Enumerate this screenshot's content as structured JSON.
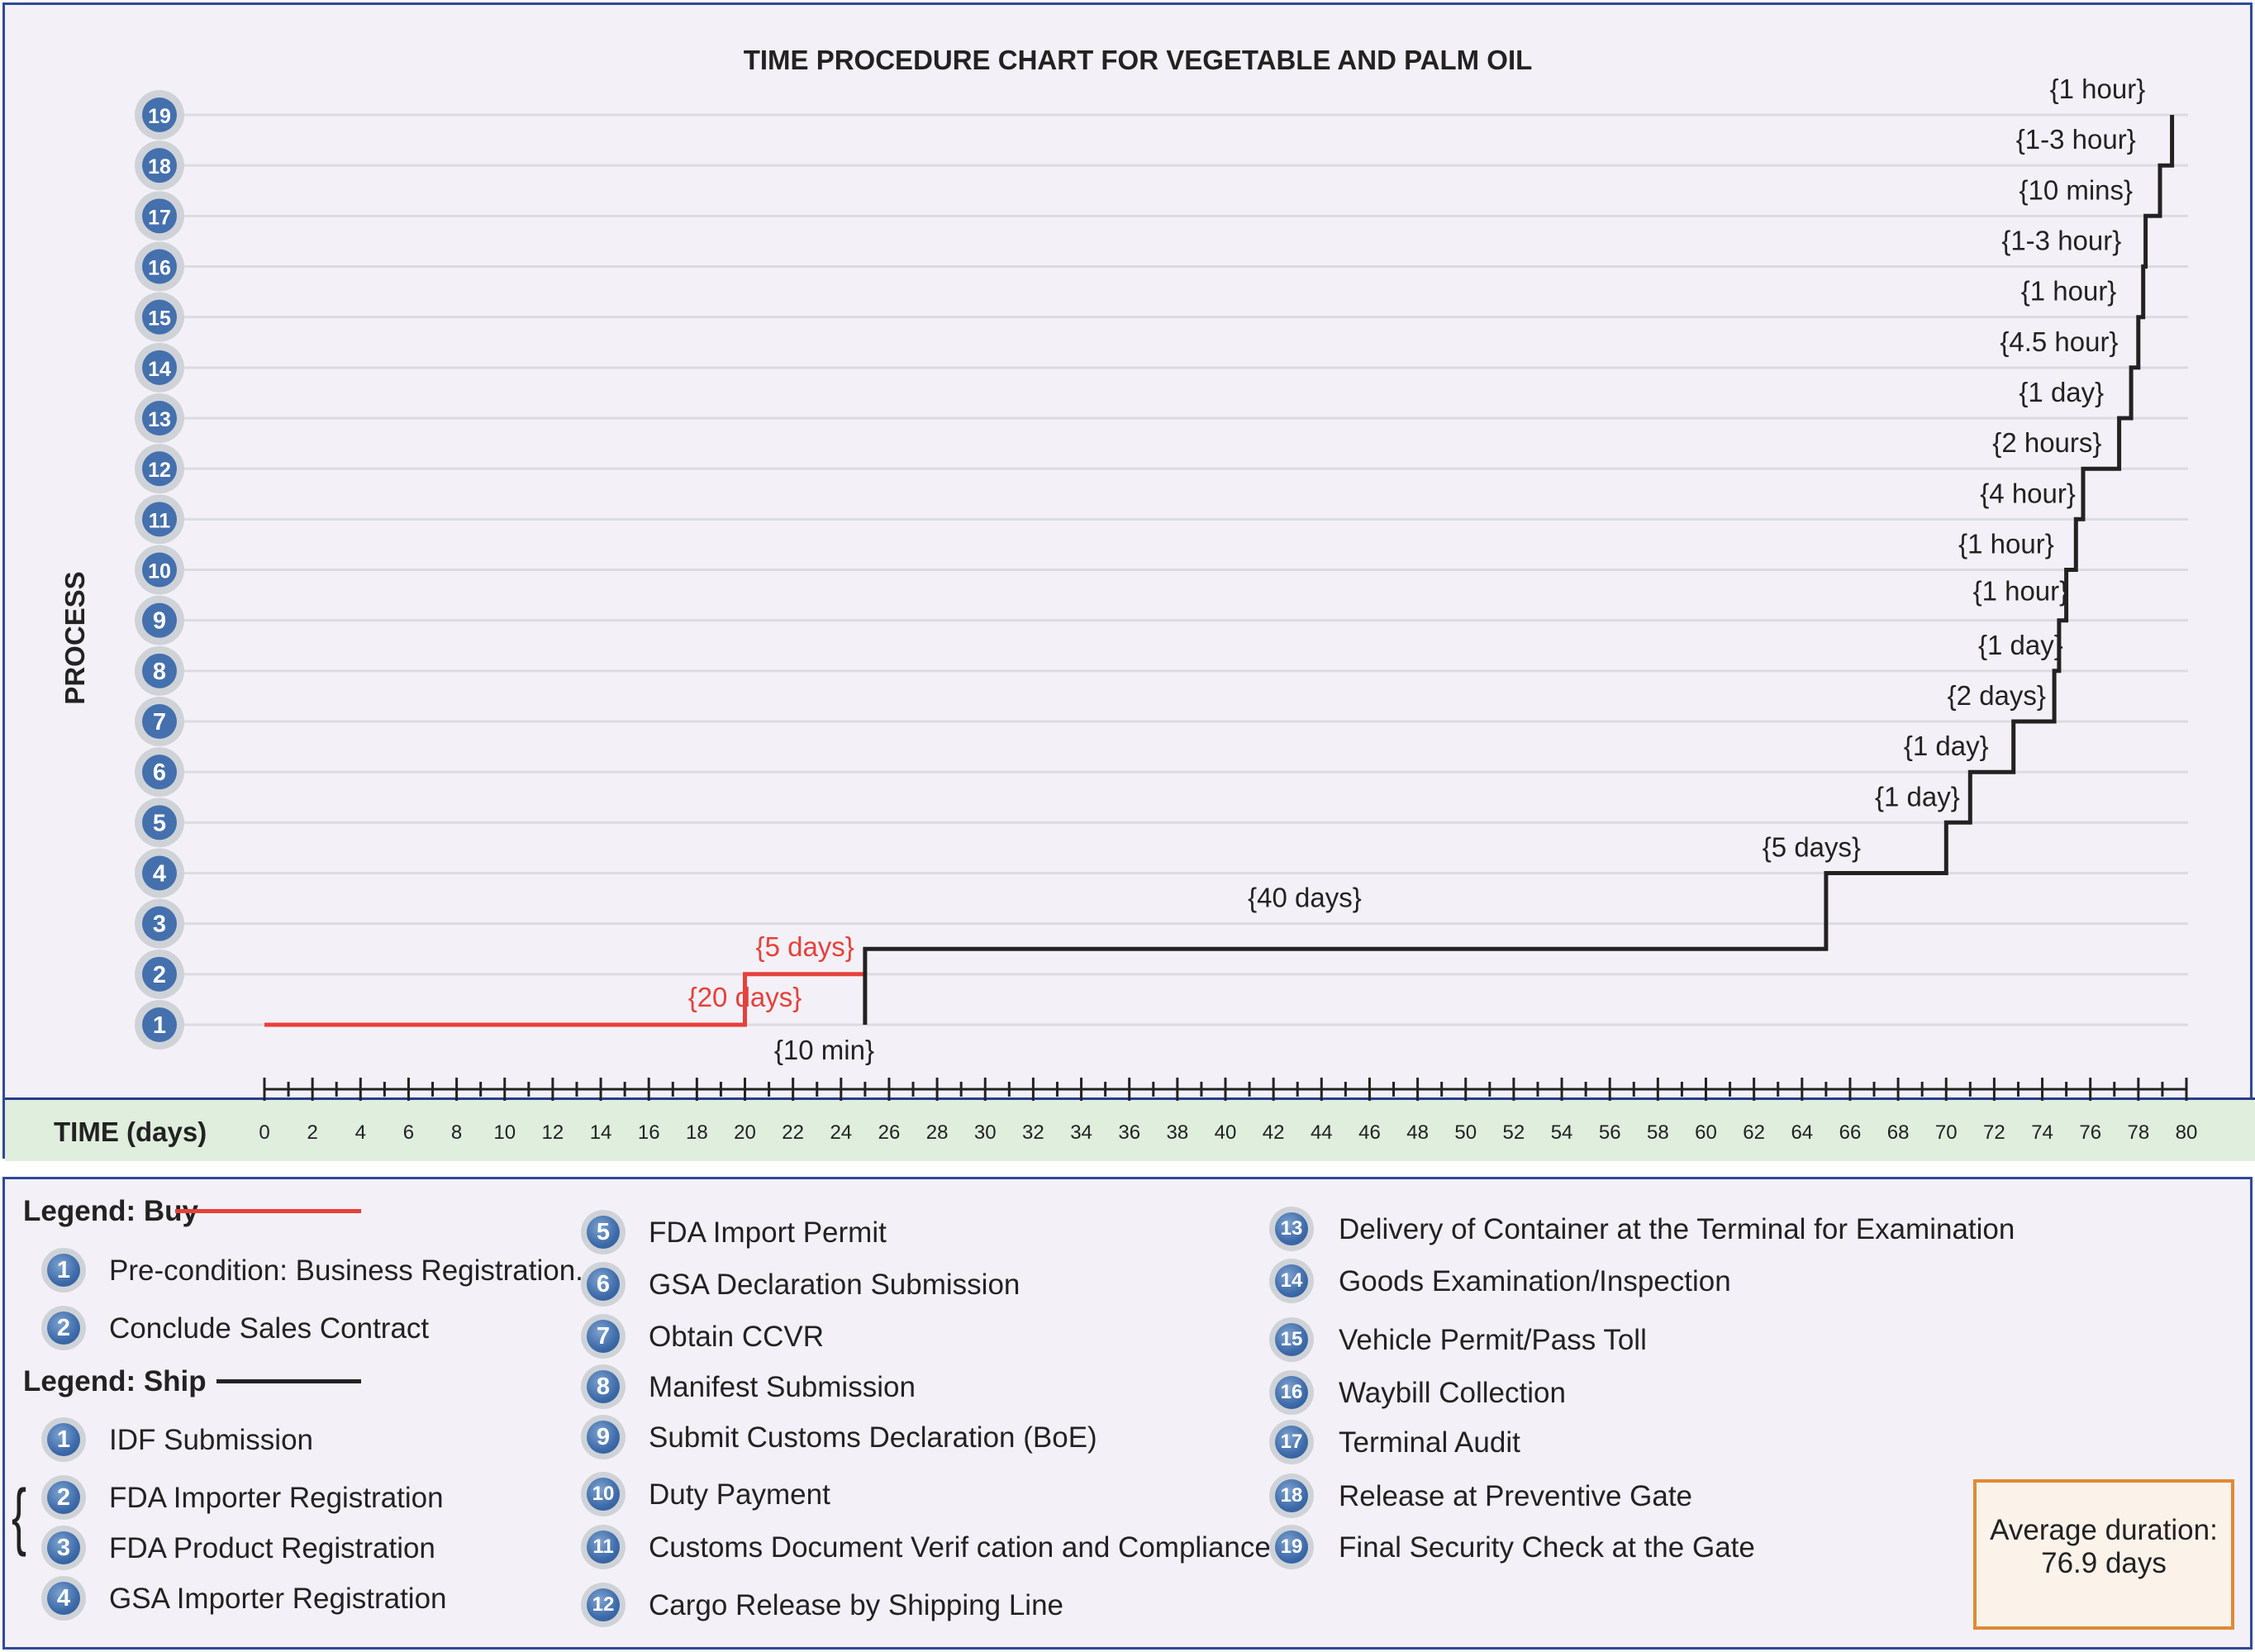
{
  "chart_data": {
    "type": "line",
    "title": "TIME PROCEDURE CHART FOR VEGETABLE AND PALM OIL",
    "xlabel": "TIME (days)",
    "ylabel": "PROCESS",
    "xlim": [
      0,
      80
    ],
    "ylim": [
      1,
      19
    ],
    "x_ticks": [
      "0",
      "2",
      "4",
      "6",
      "8",
      "10",
      "12",
      "14",
      "16",
      "18",
      "20",
      "22",
      "24",
      "26",
      "28",
      "30",
      "32",
      "34",
      "36",
      "38",
      "40",
      "42",
      "44",
      "46",
      "48",
      "50",
      "52",
      "54",
      "56",
      "58",
      "60",
      "62",
      "64",
      "66",
      "68",
      "70",
      "72",
      "74",
      "76",
      "78",
      "80"
    ],
    "y_ticks": [
      "1",
      "2",
      "3",
      "4",
      "5",
      "6",
      "7",
      "8",
      "9",
      "10",
      "11",
      "12",
      "13",
      "14",
      "15",
      "16",
      "17",
      "18",
      "19"
    ],
    "grid": true,
    "series": [
      {
        "name": "Buy",
        "color": "#e8403a",
        "points": [
          [
            0,
            1
          ],
          [
            20,
            1
          ],
          [
            20,
            2
          ],
          [
            25,
            2
          ]
        ]
      },
      {
        "name": "Ship",
        "color": "#222222",
        "points": [
          [
            25,
            1
          ],
          [
            25,
            2.5
          ],
          [
            65,
            2.5
          ],
          [
            65,
            4
          ],
          [
            70,
            4
          ],
          [
            70,
            5
          ],
          [
            71,
            5
          ],
          [
            71,
            6
          ],
          [
            72.8,
            6
          ],
          [
            72.8,
            7
          ],
          [
            74.5,
            7
          ],
          [
            74.5,
            8
          ],
          [
            74.7,
            8
          ],
          [
            74.7,
            9
          ],
          [
            75,
            9
          ],
          [
            75,
            10
          ],
          [
            75.4,
            10
          ],
          [
            75.4,
            11
          ],
          [
            75.7,
            11
          ],
          [
            75.7,
            12
          ],
          [
            77.2,
            12
          ],
          [
            77.2,
            13
          ],
          [
            77.7,
            13
          ],
          [
            77.7,
            14
          ],
          [
            78,
            14
          ],
          [
            78,
            15
          ],
          [
            78.2,
            15
          ],
          [
            78.2,
            16
          ],
          [
            78.3,
            16
          ],
          [
            78.3,
            17
          ],
          [
            78.9,
            17
          ],
          [
            78.9,
            18
          ],
          [
            79.4,
            18
          ],
          [
            79.4,
            19
          ]
        ]
      }
    ],
    "annotations": [
      {
        "text": "{20 days}",
        "x": 20,
        "y": 1,
        "color": "#e8403a"
      },
      {
        "text": "{5 days}",
        "x": 22.5,
        "y": 2,
        "color": "#e8403a"
      },
      {
        "text": "{10 min}",
        "x": 23.3,
        "y": 1,
        "color": "#222222"
      },
      {
        "text": "{40 days}",
        "x": 43.3,
        "y": 3,
        "color": "#222222"
      },
      {
        "text": "{5 days}",
        "x": 64.4,
        "y": 4,
        "color": "#222222"
      },
      {
        "text": "{1 day}",
        "x": 68.8,
        "y": 5,
        "color": "#222222"
      },
      {
        "text": "{1 day}",
        "x": 70,
        "y": 6,
        "color": "#222222"
      },
      {
        "text": "{2 days}",
        "x": 72.1,
        "y": 7,
        "color": "#222222"
      },
      {
        "text": "{1 day}",
        "x": 73.1,
        "y": 8,
        "color": "#222222"
      },
      {
        "text": "{1 hour}",
        "x": 73.1,
        "y": 9,
        "color": "#222222"
      },
      {
        "text": "{1 hour}",
        "x": 72.5,
        "y": 10,
        "color": "#222222"
      },
      {
        "text": "{4 hour}",
        "x": 73.4,
        "y": 11,
        "color": "#222222"
      },
      {
        "text": "{2 hours}",
        "x": 74.2,
        "y": 12,
        "color": "#222222"
      },
      {
        "text": "{1 day}",
        "x": 74.8,
        "y": 13,
        "color": "#222222"
      },
      {
        "text": "{4.5 hour}",
        "x": 74.7,
        "y": 14,
        "color": "#222222"
      },
      {
        "text": "{1 hour}",
        "x": 75.1,
        "y": 15,
        "color": "#222222"
      },
      {
        "text": "{1-3 hour}",
        "x": 74.8,
        "y": 16,
        "color": "#222222"
      },
      {
        "text": "{10 mins}",
        "x": 75.4,
        "y": 17,
        "color": "#222222"
      },
      {
        "text": "{1-3 hour}",
        "x": 75.4,
        "y": 18,
        "color": "#222222"
      },
      {
        "text": "{1 hour}",
        "x": 76.3,
        "y": 19,
        "color": "#222222"
      }
    ]
  },
  "legend": {
    "buy_title": "Legend: Buy",
    "ship_title": "Legend: Ship",
    "buy_color": "#e8403a",
    "ship_color": "#222222",
    "buy_items": [
      {
        "n": "1",
        "label": "Pre-condition:  Business Registration."
      },
      {
        "n": "2",
        "label": "Conclude Sales Contract"
      }
    ],
    "ship_items": [
      {
        "n": "1",
        "label": "IDF Submission"
      },
      {
        "n": "2",
        "label": "FDA Importer Registration"
      },
      {
        "n": "3",
        "label": "FDA Product Registration"
      },
      {
        "n": "4",
        "label": "GSA Importer Registration"
      },
      {
        "n": "5",
        "label": "FDA Import Permit"
      },
      {
        "n": "6",
        "label": "GSA Declaration Submission"
      },
      {
        "n": "7",
        "label": "Obtain CCVR"
      },
      {
        "n": "8",
        "label": "Manifest Submission"
      },
      {
        "n": "9",
        "label": "Submit Customs Declaration (BoE)"
      },
      {
        "n": "10",
        "label": "Duty Payment"
      },
      {
        "n": "11",
        "label": "Customs Document Verif cation and Compliance"
      },
      {
        "n": "12",
        "label": "Cargo Release by Shipping Line"
      },
      {
        "n": "13",
        "label": "Delivery of Container  at the Terminal for Examination"
      },
      {
        "n": "14",
        "label": "Goods Examination/Inspection"
      },
      {
        "n": "15",
        "label": "Vehicle Permit/Pass Toll"
      },
      {
        "n": "16",
        "label": "Waybill Collection"
      },
      {
        "n": "17",
        "label": " Terminal Audit"
      },
      {
        "n": "18",
        "label": " Release at Preventive Gate"
      },
      {
        "n": "19",
        "label": "Final Security Check at the Gate"
      }
    ]
  },
  "summary": {
    "line1": "Average duration:",
    "line2": "76.9 days"
  }
}
